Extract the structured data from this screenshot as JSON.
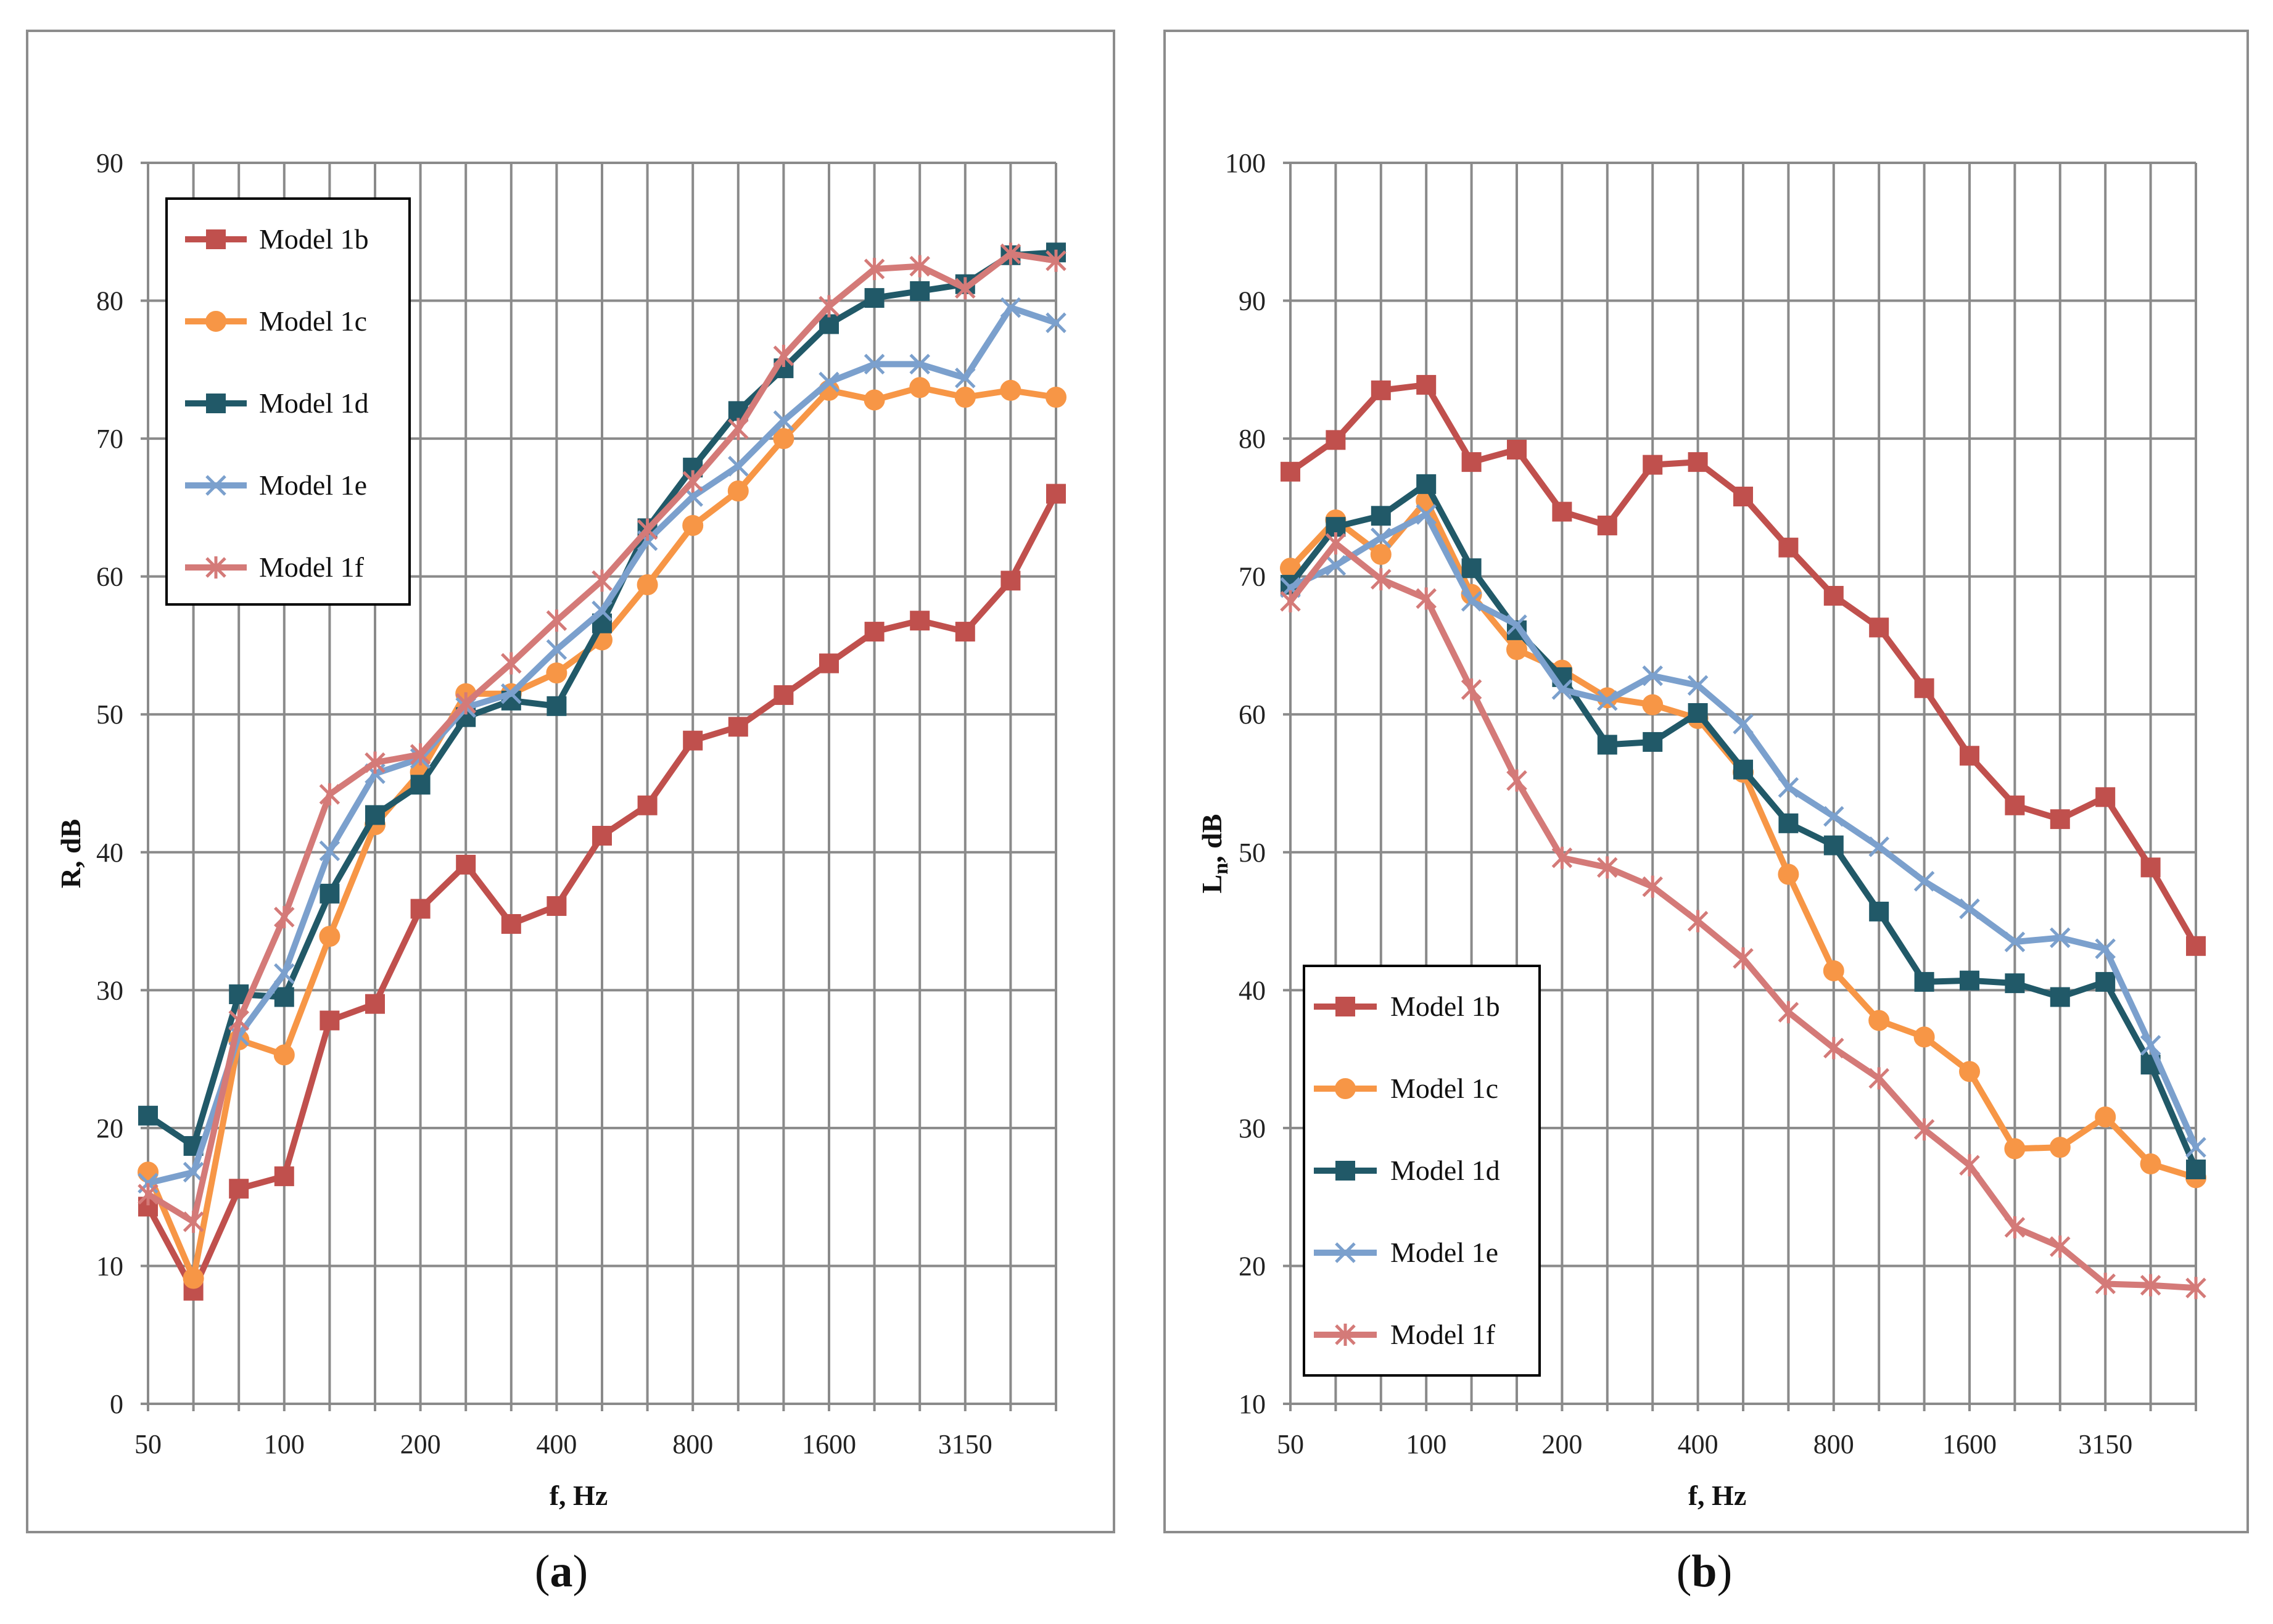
{
  "chart_data": [
    {
      "type": "line",
      "panel": "(a)",
      "panel_letter": "a",
      "xlabel": "f, Hz",
      "ylabel": "R, dB",
      "x_tick_labels": [
        "50",
        "100",
        "200",
        "400",
        "800",
        "1600",
        "3150"
      ],
      "x_points": 21,
      "ylim": [
        0,
        90
      ],
      "y_ticks": [
        0,
        10,
        20,
        30,
        40,
        50,
        60,
        70,
        80,
        90
      ],
      "grid": true,
      "legend_position": "top-left",
      "series": [
        {
          "name": "Model 1b",
          "color": "#c0504d",
          "marker": "square",
          "values": [
            14.3,
            8.2,
            15.6,
            16.5,
            27.8,
            29.0,
            35.9,
            39.1,
            34.8,
            36.1,
            41.2,
            43.4,
            48.1,
            49.1,
            51.4,
            53.7,
            56.0,
            56.8,
            56.0,
            59.7,
            66.0
          ]
        },
        {
          "name": "Model 1c",
          "color": "#f79646",
          "marker": "circle",
          "values": [
            16.8,
            9.1,
            26.4,
            25.3,
            33.9,
            42.0,
            45.8,
            51.5,
            51.5,
            53.0,
            55.4,
            59.4,
            63.7,
            66.2,
            70.0,
            73.5,
            72.8,
            73.7,
            73.0,
            73.5,
            73.0
          ]
        },
        {
          "name": "Model 1d",
          "color": "#215968",
          "marker": "square",
          "values": [
            20.9,
            18.7,
            29.7,
            29.5,
            37.0,
            42.7,
            44.9,
            49.8,
            51.0,
            50.6,
            56.6,
            63.5,
            67.9,
            72.0,
            75.1,
            78.3,
            80.2,
            80.7,
            81.2,
            83.3,
            83.5
          ]
        },
        {
          "name": "Model 1e",
          "color": "#7ba0cd",
          "marker": "x",
          "values": [
            16.0,
            16.8,
            26.7,
            31.2,
            40.1,
            45.7,
            46.8,
            50.5,
            51.5,
            54.7,
            57.5,
            62.6,
            65.8,
            68.0,
            71.3,
            74.1,
            75.4,
            75.4,
            74.4,
            79.5,
            78.4
          ]
        },
        {
          "name": "Model 1f",
          "color": "#d47a78",
          "marker": "star",
          "values": [
            15.2,
            13.2,
            27.8,
            35.3,
            44.2,
            46.5,
            47.1,
            50.8,
            53.7,
            56.8,
            59.7,
            63.4,
            66.9,
            70.7,
            76.0,
            79.6,
            82.3,
            82.5,
            80.9,
            83.4,
            82.9
          ]
        }
      ]
    },
    {
      "type": "line",
      "panel": "(b)",
      "panel_letter": "b",
      "xlabel": "f, Hz",
      "ylabel": "Ln, dB",
      "x_tick_labels": [
        "50",
        "100",
        "200",
        "400",
        "800",
        "1600",
        "3150"
      ],
      "x_points": 21,
      "ylim": [
        10,
        100
      ],
      "y_ticks": [
        10,
        20,
        30,
        40,
        50,
        60,
        70,
        80,
        90,
        100
      ],
      "grid": true,
      "legend_position": "bottom-left",
      "series": [
        {
          "name": "Model 1b",
          "color": "#c0504d",
          "marker": "square",
          "values": [
            77.6,
            79.9,
            83.5,
            83.9,
            78.3,
            79.2,
            74.7,
            73.7,
            78.1,
            78.3,
            75.8,
            72.1,
            68.6,
            66.3,
            61.9,
            57.0,
            53.4,
            52.4,
            54.0,
            48.9,
            43.2
          ]
        },
        {
          "name": "Model 1c",
          "color": "#f79646",
          "marker": "circle",
          "values": [
            70.6,
            74.1,
            71.6,
            75.5,
            68.7,
            64.7,
            63.2,
            61.2,
            60.7,
            59.7,
            55.8,
            48.4,
            41.4,
            37.8,
            36.6,
            34.1,
            28.5,
            28.6,
            30.8,
            27.4,
            26.4
          ]
        },
        {
          "name": "Model 1d",
          "color": "#215968",
          "marker": "square",
          "values": [
            69.4,
            73.6,
            74.4,
            76.7,
            70.6,
            66.1,
            62.7,
            57.8,
            58.0,
            60.1,
            56.0,
            52.1,
            50.5,
            45.7,
            40.6,
            40.7,
            40.5,
            39.5,
            40.6,
            34.6,
            27.0
          ]
        },
        {
          "name": "Model 1e",
          "color": "#7ba0cd",
          "marker": "x",
          "values": [
            69.2,
            70.8,
            72.8,
            74.5,
            68.2,
            66.5,
            61.8,
            61.0,
            62.8,
            62.1,
            59.3,
            54.7,
            52.6,
            50.4,
            47.9,
            45.9,
            43.5,
            43.8,
            43.0,
            36.0,
            28.6
          ]
        },
        {
          "name": "Model 1f",
          "color": "#d47a78",
          "marker": "star",
          "values": [
            68.2,
            72.4,
            69.8,
            68.4,
            61.8,
            55.2,
            49.6,
            48.9,
            47.5,
            45.0,
            42.3,
            38.4,
            35.8,
            33.6,
            29.9,
            27.3,
            22.8,
            21.4,
            18.7,
            18.6,
            18.4
          ]
        }
      ]
    }
  ]
}
